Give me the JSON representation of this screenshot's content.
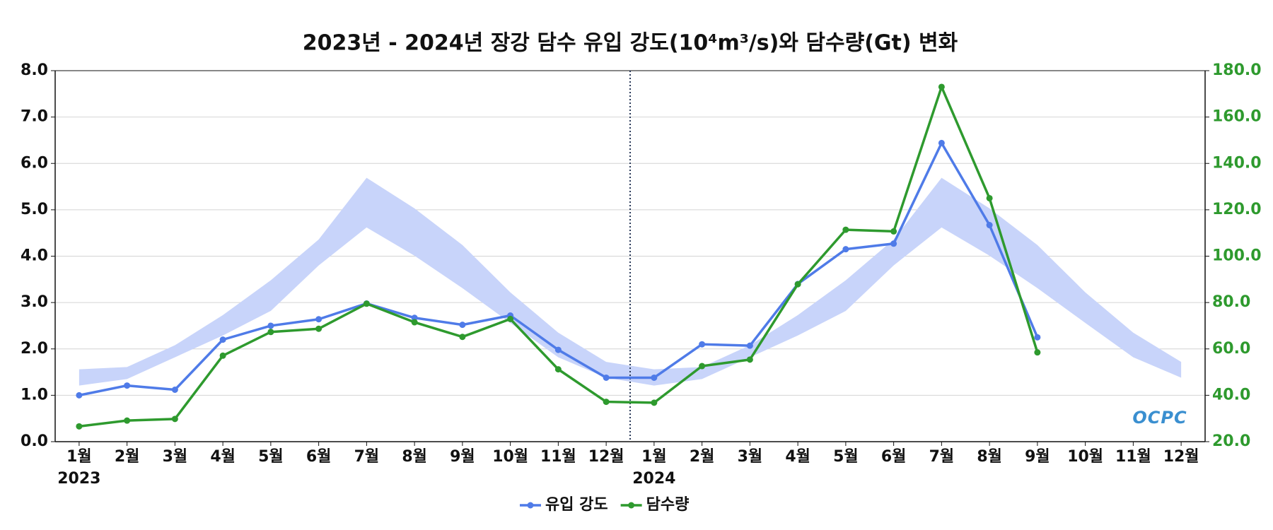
{
  "chart_data": {
    "type": "line",
    "title": "2023년 - 2024년 장강 담수 유입 강도(10⁴m³/s)와 담수량(Gt) 변화",
    "categories": [
      "1월",
      "2월",
      "3월",
      "4월",
      "5월",
      "6월",
      "7월",
      "8월",
      "9월",
      "10월",
      "11월",
      "12월",
      "1월",
      "2월",
      "3월",
      "4월",
      "5월",
      "6월",
      "7월",
      "8월",
      "9월",
      "10월",
      "11월",
      "12월"
    ],
    "year_labels": [
      "2023",
      "2024"
    ],
    "series": [
      {
        "name": "유입 강도",
        "color": "#4f7be8",
        "axis": "y",
        "values": [
          1.0,
          1.21,
          1.12,
          2.2,
          2.5,
          2.64,
          2.98,
          2.67,
          2.52,
          2.72,
          1.98,
          1.38,
          1.38,
          2.1,
          2.07,
          3.4,
          4.15,
          4.27,
          6.44,
          4.67,
          2.25,
          null,
          null,
          null
        ]
      },
      {
        "name": "담수량",
        "color": "#2e9a2e",
        "axis": "y2",
        "values": [
          26.6,
          29.1,
          29.8,
          57.1,
          67.3,
          68.7,
          79.5,
          71.5,
          65.2,
          72.9,
          51.2,
          37.2,
          36.8,
          52.6,
          55.4,
          87.9,
          111.4,
          110.7,
          173.0,
          125.0,
          58.5,
          null,
          null,
          null
        ]
      }
    ],
    "band": {
      "color": "#c8d4fa",
      "upper": [
        1.56,
        1.61,
        2.08,
        2.73,
        3.48,
        4.36,
        5.69,
        5.03,
        4.24,
        3.22,
        2.35,
        1.72,
        1.56,
        1.61,
        2.08,
        2.73,
        3.48,
        4.36,
        5.69,
        5.03,
        4.24,
        3.22,
        2.35,
        1.72
      ],
      "lower": [
        1.21,
        1.35,
        1.82,
        2.29,
        2.82,
        3.8,
        4.62,
        4.01,
        3.31,
        2.56,
        1.82,
        1.38,
        1.21,
        1.35,
        1.82,
        2.29,
        2.82,
        3.8,
        4.62,
        4.01,
        3.31,
        2.56,
        1.82,
        1.38
      ]
    },
    "ylim": [
      0,
      8
    ],
    "yticks": [
      {
        "value": 0,
        "label": "0.0"
      },
      {
        "value": 1,
        "label": "1.0"
      },
      {
        "value": 2,
        "label": "2.0"
      },
      {
        "value": 3,
        "label": "3.0"
      },
      {
        "value": 4,
        "label": "4.0"
      },
      {
        "value": 5,
        "label": "5.0"
      },
      {
        "value": 6,
        "label": "6.0"
      },
      {
        "value": 7,
        "label": "7.0"
      },
      {
        "value": 8,
        "label": "8.0"
      }
    ],
    "y2lim": [
      20,
      180
    ],
    "y2ticks": [
      {
        "value": 20,
        "label": "20.0"
      },
      {
        "value": 40,
        "label": "40.0"
      },
      {
        "value": 60,
        "label": "60.0"
      },
      {
        "value": 80,
        "label": "80.0"
      },
      {
        "value": 100,
        "label": "100.0"
      },
      {
        "value": 120,
        "label": "120.0"
      },
      {
        "value": 140,
        "label": "140.0"
      },
      {
        "value": 160,
        "label": "160.0"
      },
      {
        "value": 180,
        "label": "180.0"
      }
    ],
    "y2_color": "#2e9a2e",
    "grid": true,
    "legend": "bottom",
    "logo": "OCPC"
  }
}
